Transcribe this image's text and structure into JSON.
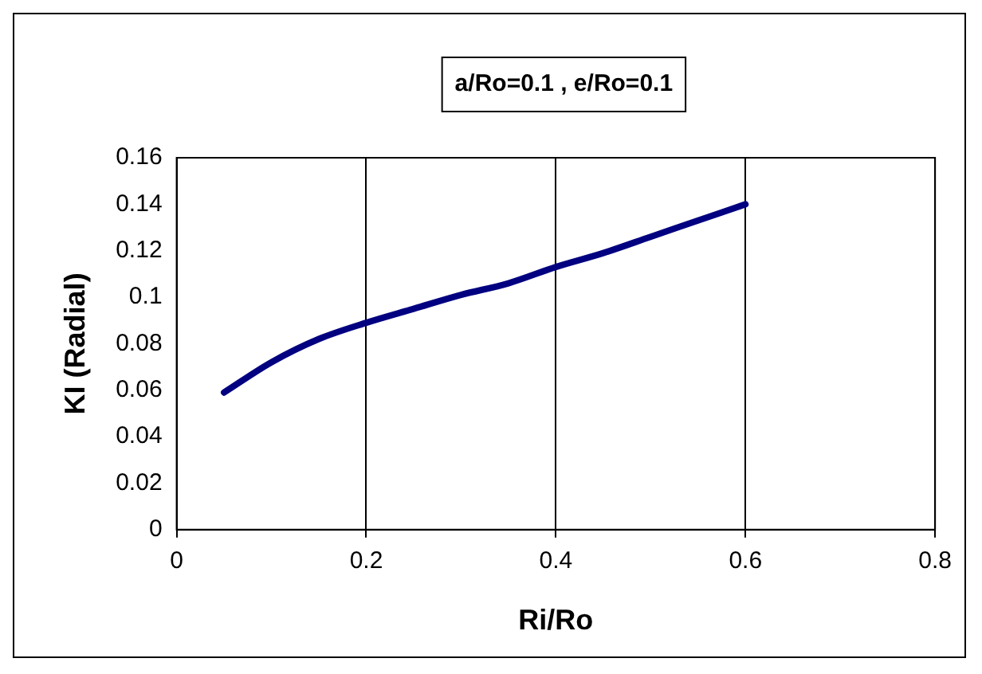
{
  "chart_data": {
    "type": "line",
    "title": "a/Ro=0.1 , e/Ro=0.1",
    "xlabel": "Ri/Ro",
    "ylabel": "KI (Radial)",
    "x": [
      0.05,
      0.1,
      0.15,
      0.2,
      0.25,
      0.3,
      0.35,
      0.4,
      0.45,
      0.5,
      0.55,
      0.6
    ],
    "series": [
      {
        "color": "#000080",
        "values": [
          0.059,
          0.072,
          0.082,
          0.089,
          0.095,
          0.101,
          0.106,
          0.113,
          0.119,
          0.126,
          0.133,
          0.14
        ]
      }
    ],
    "xlim": [
      0,
      0.8
    ],
    "xticks": [
      0,
      0.2,
      0.4,
      0.6,
      0.8
    ],
    "ylim": [
      0,
      0.16
    ],
    "yticks": [
      0,
      0.02,
      0.04,
      0.06,
      0.08,
      0.1,
      0.12,
      0.14,
      0.16
    ],
    "grid": "x",
    "legend": false,
    "marker": "none",
    "line_style": "solid"
  }
}
